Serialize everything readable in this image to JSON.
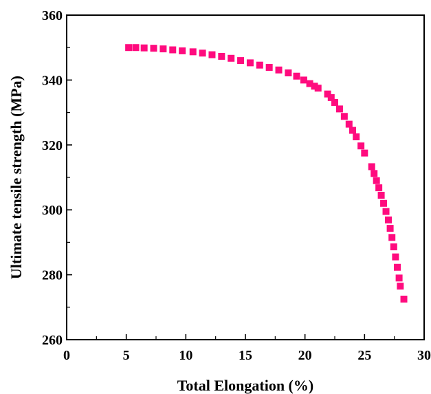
{
  "chart_data": {
    "type": "scatter",
    "xlabel": "Total Elongation (%)",
    "ylabel": "Ultimate tensile strength (MPa)",
    "xlim": [
      0,
      30
    ],
    "ylim": [
      260,
      360
    ],
    "xticks": [
      0,
      5,
      10,
      15,
      20,
      25,
      30
    ],
    "yticks": [
      260,
      280,
      300,
      320,
      340,
      360
    ],
    "grid": false,
    "marker_color": "#ff0b7e",
    "marker_shape": "square",
    "x": [
      5.2,
      5.8,
      6.5,
      7.3,
      8.1,
      8.9,
      9.7,
      10.6,
      11.4,
      12.2,
      13.0,
      13.8,
      14.6,
      15.4,
      16.2,
      17.0,
      17.8,
      18.6,
      19.3,
      19.9,
      20.4,
      20.8,
      21.1,
      21.9,
      22.2,
      22.5,
      22.9,
      23.3,
      23.7,
      24.0,
      24.3,
      24.7,
      25.0,
      25.6,
      25.8,
      26.0,
      26.2,
      26.4,
      26.6,
      26.8,
      27.0,
      27.15,
      27.3,
      27.45,
      27.6,
      27.75,
      27.9,
      28.0,
      28.3
    ],
    "y": [
      350.0,
      350.0,
      349.9,
      349.8,
      349.6,
      349.3,
      349.0,
      348.7,
      348.3,
      347.8,
      347.3,
      346.7,
      346.0,
      345.3,
      344.6,
      343.9,
      343.1,
      342.2,
      341.2,
      340.0,
      338.9,
      338.1,
      337.5,
      335.7,
      334.6,
      333.1,
      331.1,
      328.8,
      326.4,
      324.5,
      322.5,
      319.7,
      317.5,
      313.3,
      311.2,
      309.0,
      306.8,
      304.5,
      302.0,
      299.5,
      296.9,
      294.3,
      291.5,
      288.6,
      285.5,
      282.3,
      279.0,
      276.5,
      272.5
    ]
  }
}
